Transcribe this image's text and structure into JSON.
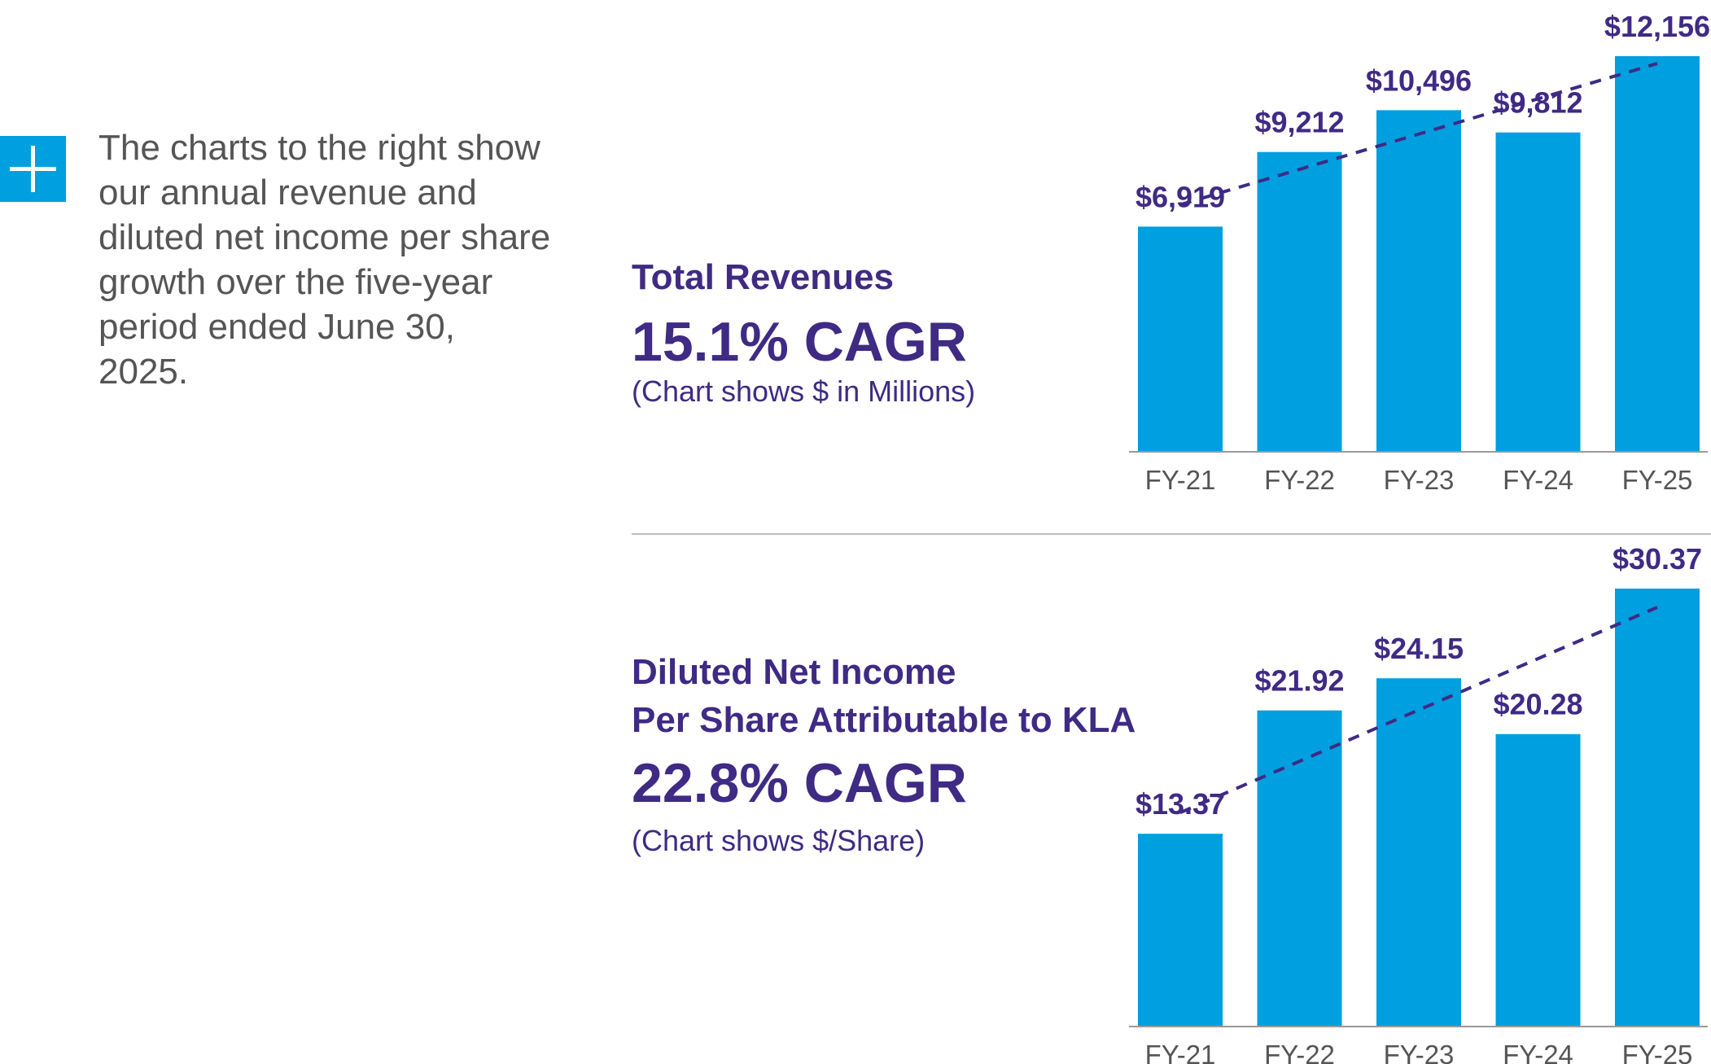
{
  "intro_text": "The charts to the right show our annual revenue and diluted net income per share growth over the five-year period ended June 30, 2025.",
  "icon": "plus-icon",
  "colors": {
    "bar": "#009fdf",
    "text": "#3f2a84",
    "trend": "#3f2a84",
    "axis": "#999999"
  },
  "revenue": {
    "title": "Total Revenues",
    "cagr": "15.1% CAGR",
    "note": "(Chart shows $ in Millions)"
  },
  "eps": {
    "title_line1": "Diluted Net Income",
    "title_line2": "Per Share Attributable to KLA",
    "cagr": "22.8% CAGR",
    "note": "(Chart shows $/Share)"
  },
  "chart_data": [
    {
      "type": "bar",
      "title": "Total Revenues",
      "categories": [
        "FY-21",
        "FY-22",
        "FY-23",
        "FY-24",
        "FY-25"
      ],
      "values": [
        6919,
        9212,
        10496,
        9812,
        12156
      ],
      "labels": [
        "$6,919",
        "$9,212",
        "$10,496",
        "$9,812",
        "$12,156"
      ],
      "ylim": [
        0,
        12156
      ],
      "trendline": "dashed",
      "unit": "$ in Millions"
    },
    {
      "type": "bar",
      "title": "Diluted Net Income Per Share Attributable to KLA",
      "categories": [
        "FY-21",
        "FY-22",
        "FY-23",
        "FY-24",
        "FY-25"
      ],
      "values": [
        13.37,
        21.92,
        24.15,
        20.28,
        30.37
      ],
      "labels": [
        "$13.37",
        "$21.92",
        "$24.15",
        "$20.28",
        "$30.37"
      ],
      "ylim": [
        0,
        30.37
      ],
      "trendline": "dashed",
      "unit": "$/Share"
    }
  ]
}
